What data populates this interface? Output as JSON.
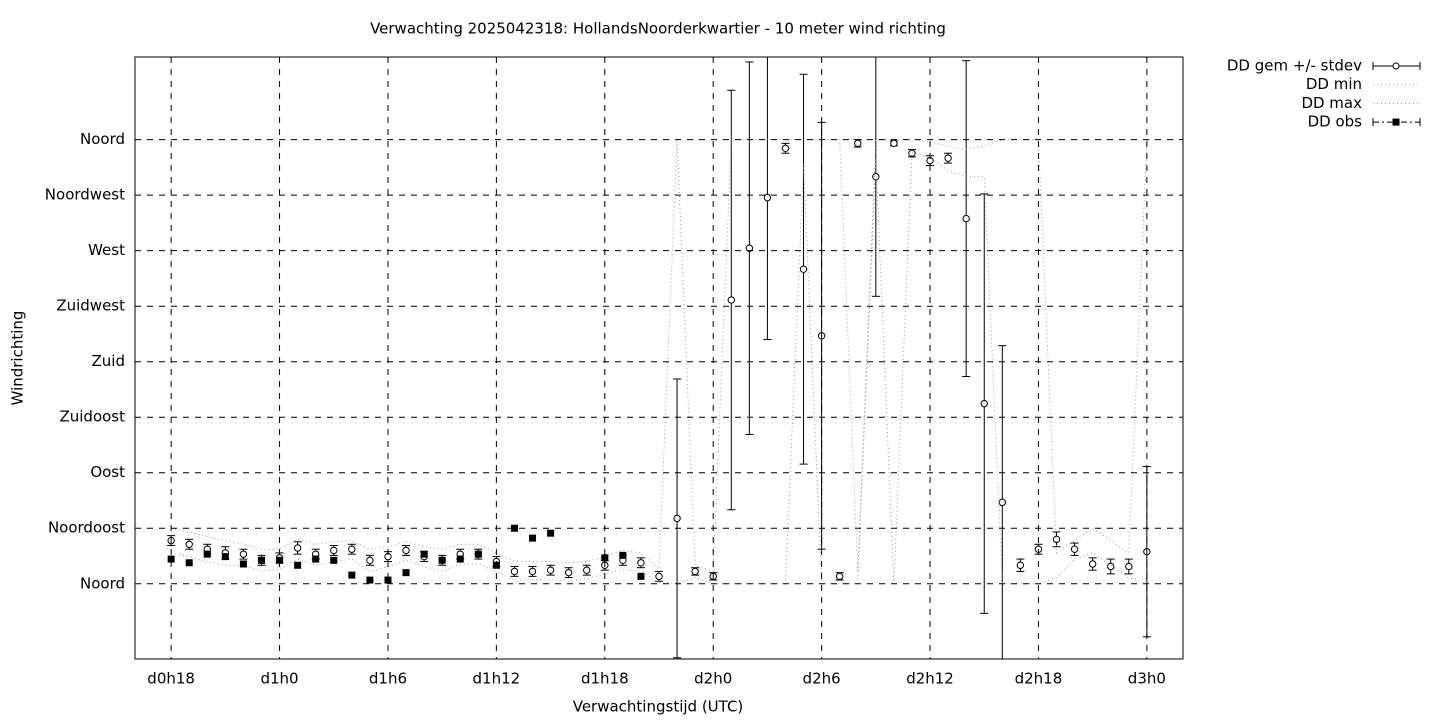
{
  "chart_data": {
    "type": "errorbar",
    "title": "Verwachting 2025042318: HollandsNoorderkwartier - 10 meter wind richting",
    "x_label": "Verwachtingstijd (UTC)",
    "y_label": "Windrichting",
    "x": [
      18,
      19,
      20,
      21,
      22,
      23,
      24,
      25,
      26,
      27,
      28,
      29,
      30,
      31,
      32,
      33,
      34,
      35,
      36,
      37,
      38,
      39,
      40,
      41,
      42,
      43,
      44,
      45,
      46,
      47,
      48,
      49,
      50,
      51,
      52,
      53,
      54,
      55,
      56,
      57,
      58,
      59,
      60,
      61,
      62,
      63,
      64,
      65,
      66,
      67,
      68,
      69,
      70,
      71,
      72
    ],
    "series": [
      {
        "name": "DD gem +/- stdev",
        "color": "#000000",
        "values": [
          35,
          32,
          28,
          25,
          24,
          19,
          21,
          29,
          24,
          27,
          28,
          19,
          22,
          27,
          22,
          19,
          24,
          24,
          18,
          10,
          10,
          11,
          9,
          11,
          15,
          19,
          17,
          6,
          53,
          10,
          6,
          230,
          272,
          313,
          353,
          255,
          201,
          6,
          357,
          330,
          357,
          349,
          343,
          345,
          296,
          146,
          66,
          15,
          28,
          36,
          28,
          16,
          14,
          14,
          26
        ],
        "errors": [
          4,
          4,
          4,
          5,
          4,
          4,
          4,
          5,
          4,
          4,
          4,
          4,
          4,
          4,
          4,
          4,
          4,
          4,
          4,
          4,
          4,
          4,
          4,
          4,
          4,
          4,
          4,
          4,
          113,
          3,
          3,
          170,
          151,
          115,
          4,
          158,
          173,
          3,
          3,
          97,
          2,
          3,
          4,
          4,
          128,
          170,
          127,
          5,
          4,
          6,
          5,
          5,
          6,
          6,
          69
        ]
      },
      {
        "name": "DD min",
        "color": "#999999",
        "values": [
          25,
          22,
          18,
          15,
          15,
          10,
          12,
          20,
          15,
          18,
          20,
          10,
          14,
          19,
          14,
          10,
          16,
          16,
          10,
          3,
          3,
          4,
          2,
          4,
          8,
          12,
          10,
          1,
          0,
          5,
          0,
          0,
          0,
          0,
          0,
          340,
          0,
          0,
          0,
          345,
          0,
          350,
          345,
          335,
          330,
          330,
          0,
          0,
          0,
          5,
          20,
          25,
          15,
          5,
          0
        ]
      },
      {
        "name": "DD max",
        "color": "#999999",
        "values": [
          45,
          42,
          38,
          35,
          32,
          28,
          28,
          36,
          32,
          34,
          35,
          28,
          30,
          34,
          30,
          28,
          32,
          32,
          25,
          18,
          18,
          18,
          17,
          18,
          22,
          27,
          25,
          12,
          360,
          15,
          10,
          360,
          360,
          360,
          360,
          360,
          360,
          360,
          10,
          360,
          360,
          360,
          358,
          355,
          352,
          355,
          360,
          360,
          360,
          25,
          35,
          45,
          35,
          25,
          360
        ]
      },
      {
        "name": "DD obs",
        "color": "#000000",
        "values": [
          20,
          17,
          24,
          22,
          16,
          19,
          19,
          15,
          20,
          19,
          7,
          3,
          3,
          9,
          24,
          19,
          20,
          24,
          15,
          45,
          37,
          41,
          null,
          null,
          21,
          23,
          6,
          null,
          null,
          null,
          null,
          null,
          null,
          null,
          null,
          null,
          null,
          null,
          null,
          null,
          null,
          null,
          null,
          null,
          null,
          null,
          null,
          null,
          null,
          null,
          null,
          null,
          null,
          null,
          null
        ]
      }
    ],
    "xlim": [
      16,
      74
    ],
    "ylim": [
      -61,
      427
    ],
    "xticks": [
      {
        "value": 18,
        "label": "d0h18"
      },
      {
        "value": 24,
        "label": "d1h0"
      },
      {
        "value": 30,
        "label": "d1h6"
      },
      {
        "value": 36,
        "label": "d1h12"
      },
      {
        "value": 42,
        "label": "d1h18"
      },
      {
        "value": 48,
        "label": "d2h0"
      },
      {
        "value": 54,
        "label": "d2h6"
      },
      {
        "value": 60,
        "label": "d2h12"
      },
      {
        "value": 66,
        "label": "d2h18"
      },
      {
        "value": 72,
        "label": "d3h0"
      }
    ],
    "yticks": [
      {
        "value": 0,
        "label": "Noord"
      },
      {
        "value": 45,
        "label": "Noordoost"
      },
      {
        "value": 90,
        "label": "Oost"
      },
      {
        "value": 135,
        "label": "Zuidoost"
      },
      {
        "value": 180,
        "label": "Zuid"
      },
      {
        "value": 225,
        "label": "Zuidwest"
      },
      {
        "value": 270,
        "label": "West"
      },
      {
        "value": 315,
        "label": "Noordwest"
      },
      {
        "value": 360,
        "label": "Noord"
      }
    ],
    "grid": true
  }
}
